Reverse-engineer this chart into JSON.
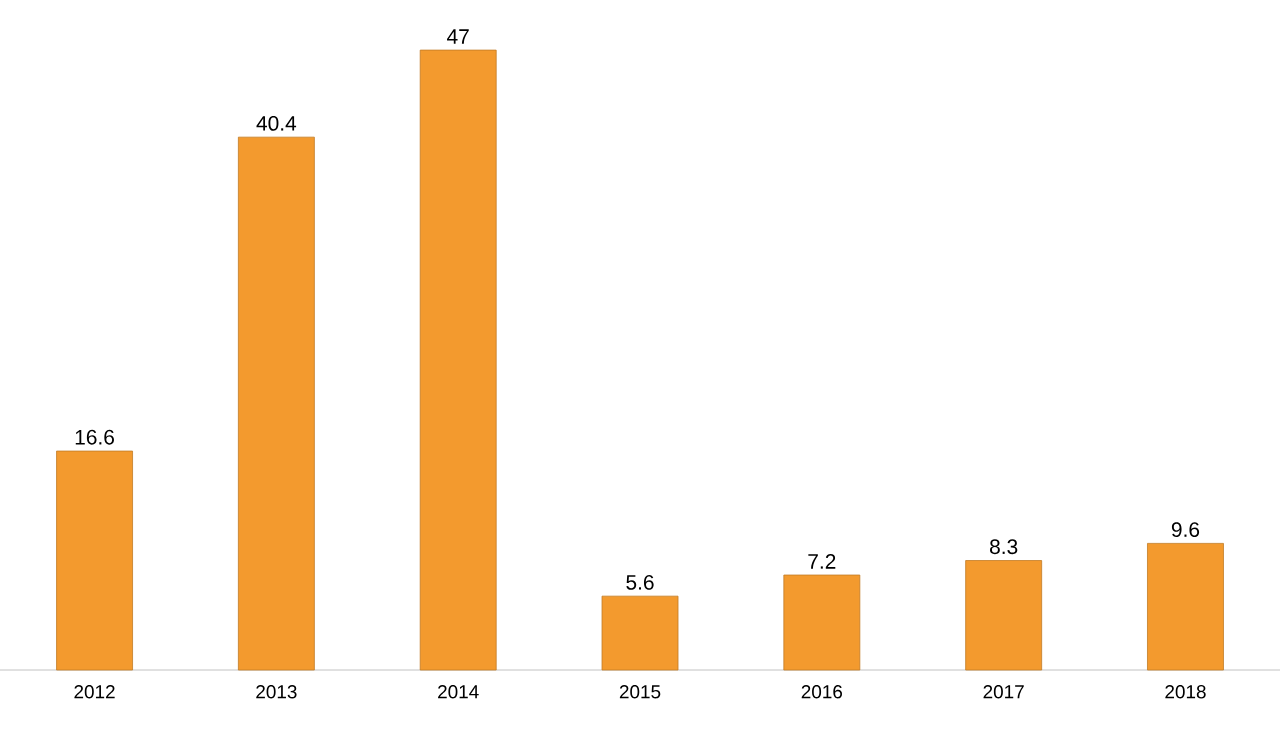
{
  "chart_data": {
    "type": "bar",
    "categories": [
      "2012",
      "2013",
      "2014",
      "2015",
      "2016",
      "2017",
      "2018"
    ],
    "values": [
      16.6,
      40.4,
      47,
      5.6,
      7.2,
      8.3,
      9.6
    ],
    "color": "#f39a2e",
    "data_labels": true
  }
}
